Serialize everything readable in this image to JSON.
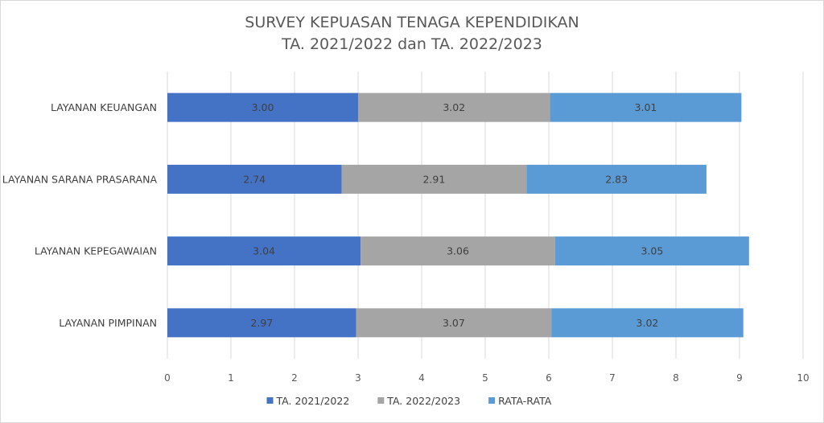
{
  "chart_data": {
    "type": "bar",
    "orientation": "horizontal",
    "stacked": true,
    "title": "SURVEY KEPUASAN TENAGA KEPENDIDIKAN",
    "subtitle": "TA. 2021/2022 dan TA. 2022/2023",
    "categories": [
      "LAYANAN KEUANGAN",
      "LAYANAN SARANA PRASARANA",
      "LAYANAN KEPEGAWAIAN",
      "LAYANAN PIMPINAN"
    ],
    "series": [
      {
        "name": "TA. 2021/2022",
        "color": "#4472c4",
        "values": [
          3.0,
          2.74,
          3.04,
          2.97
        ],
        "labels": [
          "3.00",
          "2.74",
          "3.04",
          "2.97"
        ]
      },
      {
        "name": "TA. 2022/2023",
        "color": "#a5a5a5",
        "values": [
          3.02,
          2.91,
          3.06,
          3.07
        ],
        "labels": [
          "3.02",
          "2.91",
          "3.06",
          "3.07"
        ]
      },
      {
        "name": "RATA-RATA",
        "color": "#5b9bd5",
        "values": [
          3.01,
          2.83,
          3.05,
          3.02
        ],
        "labels": [
          "3.01",
          "2.83",
          "3.05",
          "3.02"
        ]
      }
    ],
    "xlim": [
      0,
      10
    ],
    "x_ticks": [
      "0",
      "1",
      "2",
      "3",
      "4",
      "5",
      "6",
      "7",
      "8",
      "9",
      "10"
    ],
    "grid": true,
    "legend_position": "bottom"
  }
}
